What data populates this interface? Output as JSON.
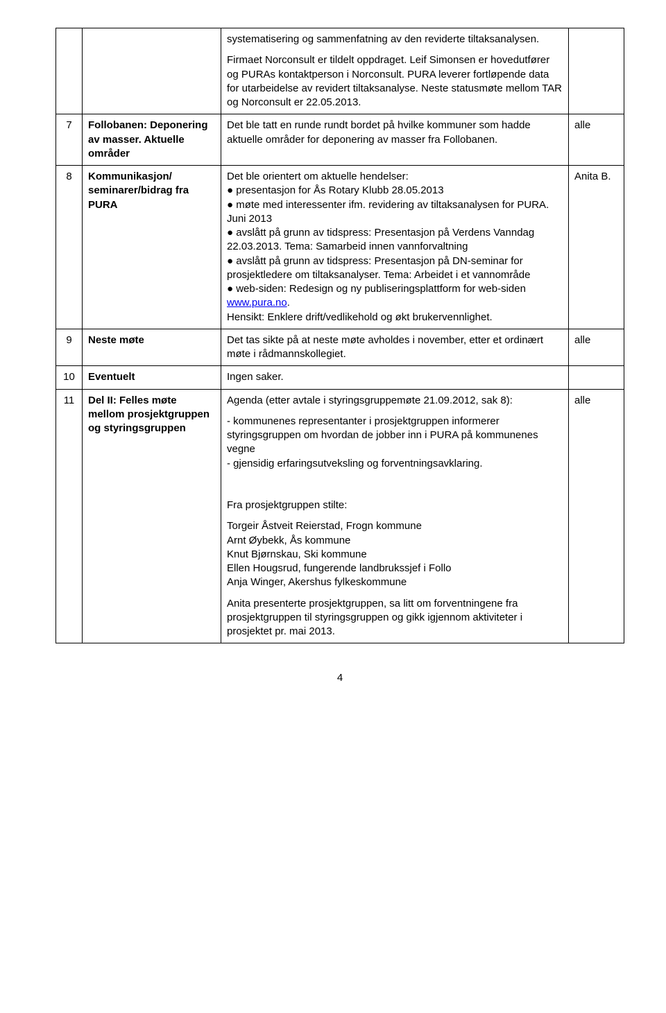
{
  "rows": [
    {
      "num": "",
      "title": "",
      "body_paragraphs": [
        "systematisering og sammenfatning av den reviderte tiltaksanalysen.",
        "Firmaet Norconsult er tildelt oppdraget. Leif Simonsen er hovedutfører og PURAs kontaktperson i Norconsult. PURA leverer fortløpende data for utarbeidelse av revidert tiltaksanalyse. Neste statusmøte mellom TAR og Norconsult er 22.05.2013."
      ],
      "who": ""
    },
    {
      "num": "7",
      "title": "Follobanen: Deponering av masser. Aktuelle områder",
      "body_paragraphs": [
        "Det ble tatt en runde rundt bordet på hvilke kommuner som hadde aktuelle områder for deponering av masser fra Follobanen."
      ],
      "who": "alle"
    },
    {
      "num": "8",
      "title": "Kommunikasjon/ seminarer/bidrag fra PURA",
      "body_paragraphs": [
        "Det ble orientert om aktuelle hendelser:\n● presentasjon for Ås Rotary Klubb 28.05.2013\n● møte med interessenter ifm. revidering av tiltaksanalysen for PURA. Juni 2013\n● avslått på grunn av tidspress: Presentasjon på Verdens Vanndag 22.03.2013. Tema: Samarbeid innen vannforvaltning\n● avslått på grunn av tidspress: Presentasjon på DN-seminar for prosjektledere om tiltaksanalyser. Tema: Arbeidet i et vannområde\n● web-siden: Redesign og ny publiseringsplattform for  web-siden [[LINK:www.pura.no]].\nHensikt: Enklere drift/vedlikehold og økt brukervennlighet."
      ],
      "who": "Anita B."
    },
    {
      "num": "9",
      "title": "Neste møte",
      "body_paragraphs": [
        "Det tas sikte på at neste møte avholdes i november, etter et ordinært møte i rådmannskollegiet."
      ],
      "who": "alle"
    },
    {
      "num": "10",
      "title": "Eventuelt",
      "body_paragraphs": [
        "Ingen saker."
      ],
      "who": ""
    },
    {
      "num": "11",
      "title": "Del II: Felles møte mellom prosjektgruppen og styringsgruppen",
      "body_paragraphs": [
        "Agenda (etter avtale i styringsgruppemøte 21.09.2012, sak 8):",
        "- kommunenes representanter i prosjektgruppen informerer styringsgruppen om hvordan de jobber inn i PURA på kommunenes vegne\n- gjensidig erfaringsutveksling og forventningsavklaring.",
        "",
        "Fra prosjektgruppen stilte:",
        "Torgeir Åstveit Reierstad, Frogn kommune\nArnt Øybekk, Ås kommune\nKnut Bjørnskau, Ski kommune\nEllen Hougsrud, fungerende landbrukssjef i Follo\nAnja Winger, Akershus fylkeskommune",
        "Anita presenterte prosjektgruppen, sa litt om forventningene fra prosjektgruppen til styringsgruppen og gikk igjennom aktiviteter i prosjektet pr. mai 2013."
      ],
      "who": "alle"
    }
  ],
  "link": {
    "url": "http://www.pura.no",
    "text": "www.pura.no"
  },
  "page_number": "4"
}
